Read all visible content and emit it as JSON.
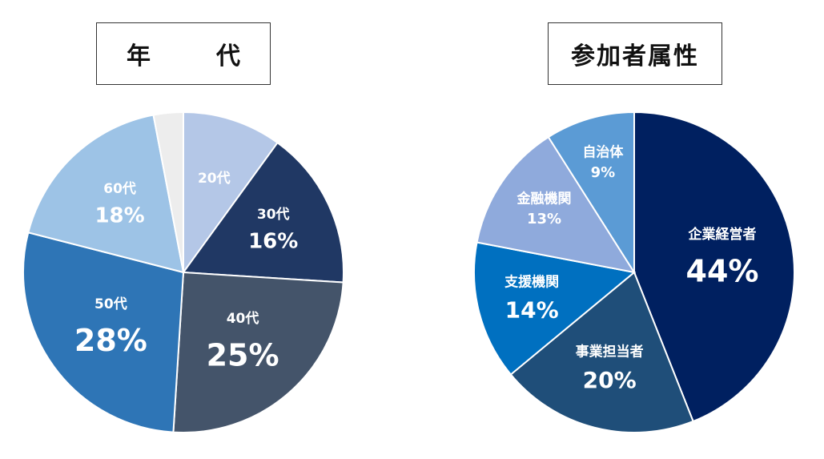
{
  "chart_data": [
    {
      "type": "pie",
      "title": "年　代",
      "slices": [
        {
          "label": "20代",
          "value": 10,
          "value_label": "",
          "color": "#b4c7e7"
        },
        {
          "label": "30代",
          "value": 16,
          "value_label": "16%",
          "color": "#203864"
        },
        {
          "label": "40代",
          "value": 25,
          "value_label": "25%",
          "color": "#44546a"
        },
        {
          "label": "50代",
          "value": 28,
          "value_label": "28%",
          "color": "#2e75b6"
        },
        {
          "label": "60代",
          "value": 18,
          "value_label": "18%",
          "color": "#9dc3e6"
        },
        {
          "label": "",
          "value": 3,
          "value_label": "",
          "color": "#ededed"
        }
      ]
    },
    {
      "type": "pie",
      "title": "参加者属性",
      "slices": [
        {
          "label": "企業経営者",
          "value": 44,
          "value_label": "44%",
          "color": "#002060"
        },
        {
          "label": "事業担当者",
          "value": 20,
          "value_label": "20%",
          "color": "#1f4e79"
        },
        {
          "label": "支援機関",
          "value": 14,
          "value_label": "14%",
          "color": "#0070c0"
        },
        {
          "label": "金融機関",
          "value": 13,
          "value_label": "13%",
          "color": "#8faadc"
        },
        {
          "label": "自治体",
          "value": 9,
          "value_label": "9%",
          "color": "#5b9bd5"
        }
      ]
    }
  ]
}
